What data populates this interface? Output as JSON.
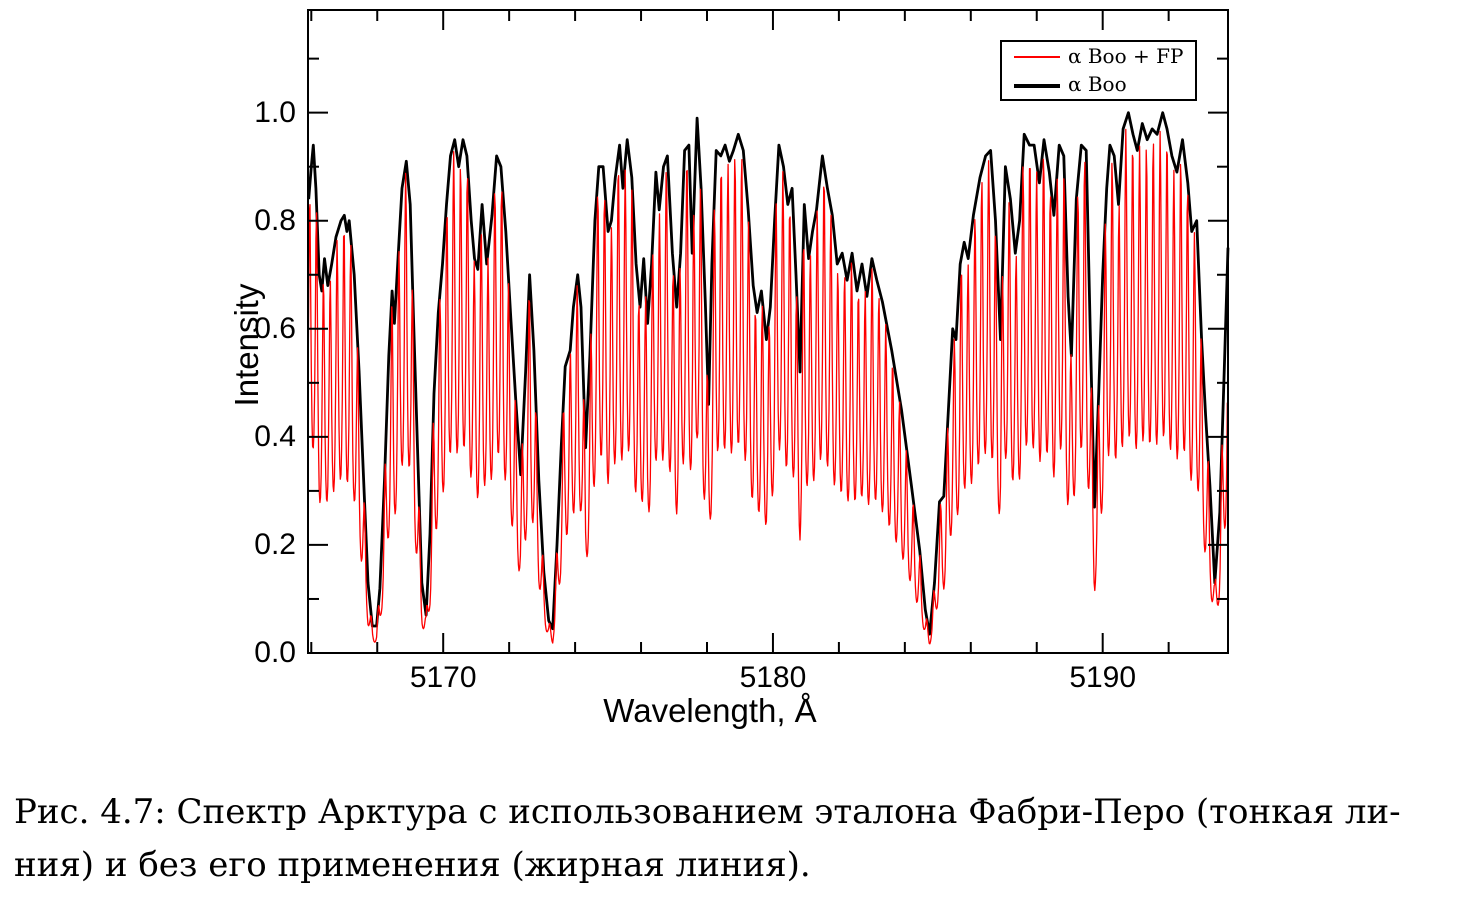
{
  "figure": {
    "caption_line1": "Рис. 4.7: Спектр Арктура с использованием эталона Фабри-Перо (тонкая ли-",
    "caption_line2": "ния) и без его применения (жирная линия)."
  },
  "chart_data": {
    "type": "line",
    "title": "",
    "xlabel": "Wavelength, Å",
    "ylabel": "Intensity",
    "xlim": [
      5165.9,
      5193.8
    ],
    "ylim": [
      0,
      1.19
    ],
    "x_major_ticks": [
      5170,
      5180,
      5190
    ],
    "x_major_tick_labels": [
      "5170",
      "5180",
      "5190"
    ],
    "x_minor_tick_step": 2,
    "y_major_ticks": [
      0,
      0.2,
      0.4,
      0.6,
      0.8,
      1.0
    ],
    "y_major_tick_labels": [
      "0.0",
      "0.2",
      "0.4",
      "0.6",
      "0.8",
      "1.0"
    ],
    "y_minor_tick_step": 0.1,
    "grid": false,
    "legend": {
      "position": "top-right",
      "entries": [
        {
          "label": "α Boo + FP",
          "color": "#fe0000",
          "line_width": 1.3
        },
        {
          "label": "α Boo",
          "color": "#000000",
          "line_width": 2.8
        }
      ]
    },
    "series": [
      {
        "name": "α Boo",
        "color": "#000000",
        "line_width": 2.8,
        "points": [
          [
            5165.92,
            0.84
          ],
          [
            5166.0,
            0.9
          ],
          [
            5166.06,
            0.94
          ],
          [
            5166.14,
            0.86
          ],
          [
            5166.24,
            0.7
          ],
          [
            5166.32,
            0.67
          ],
          [
            5166.4,
            0.73
          ],
          [
            5166.5,
            0.68
          ],
          [
            5166.62,
            0.72
          ],
          [
            5166.75,
            0.77
          ],
          [
            5166.9,
            0.8
          ],
          [
            5167.0,
            0.81
          ],
          [
            5167.08,
            0.78
          ],
          [
            5167.15,
            0.8
          ],
          [
            5167.3,
            0.7
          ],
          [
            5167.45,
            0.52
          ],
          [
            5167.6,
            0.3
          ],
          [
            5167.72,
            0.13
          ],
          [
            5167.85,
            0.05
          ],
          [
            5167.98,
            0.05
          ],
          [
            5168.08,
            0.12
          ],
          [
            5168.22,
            0.32
          ],
          [
            5168.35,
            0.55
          ],
          [
            5168.45,
            0.67
          ],
          [
            5168.52,
            0.61
          ],
          [
            5168.62,
            0.72
          ],
          [
            5168.75,
            0.86
          ],
          [
            5168.88,
            0.91
          ],
          [
            5169.0,
            0.83
          ],
          [
            5169.1,
            0.62
          ],
          [
            5169.22,
            0.38
          ],
          [
            5169.35,
            0.13
          ],
          [
            5169.48,
            0.07
          ],
          [
            5169.6,
            0.22
          ],
          [
            5169.72,
            0.48
          ],
          [
            5169.85,
            0.63
          ],
          [
            5169.98,
            0.72
          ],
          [
            5170.1,
            0.83
          ],
          [
            5170.22,
            0.92
          ],
          [
            5170.35,
            0.95
          ],
          [
            5170.47,
            0.9
          ],
          [
            5170.6,
            0.95
          ],
          [
            5170.72,
            0.92
          ],
          [
            5170.85,
            0.8
          ],
          [
            5170.95,
            0.73
          ],
          [
            5171.05,
            0.71
          ],
          [
            5171.18,
            0.83
          ],
          [
            5171.32,
            0.72
          ],
          [
            5171.48,
            0.81
          ],
          [
            5171.62,
            0.92
          ],
          [
            5171.75,
            0.9
          ],
          [
            5171.9,
            0.78
          ],
          [
            5172.05,
            0.62
          ],
          [
            5172.2,
            0.47
          ],
          [
            5172.35,
            0.33
          ],
          [
            5172.5,
            0.52
          ],
          [
            5172.62,
            0.7
          ],
          [
            5172.75,
            0.56
          ],
          [
            5172.9,
            0.32
          ],
          [
            5173.05,
            0.15
          ],
          [
            5173.2,
            0.06
          ],
          [
            5173.32,
            0.045
          ],
          [
            5173.45,
            0.2
          ],
          [
            5173.58,
            0.38
          ],
          [
            5173.7,
            0.53
          ],
          [
            5173.85,
            0.56
          ],
          [
            5173.95,
            0.64
          ],
          [
            5174.08,
            0.7
          ],
          [
            5174.18,
            0.64
          ],
          [
            5174.32,
            0.38
          ],
          [
            5174.45,
            0.55
          ],
          [
            5174.6,
            0.8
          ],
          [
            5174.72,
            0.9
          ],
          [
            5174.85,
            0.9
          ],
          [
            5175.0,
            0.78
          ],
          [
            5175.1,
            0.8
          ],
          [
            5175.22,
            0.88
          ],
          [
            5175.35,
            0.94
          ],
          [
            5175.45,
            0.86
          ],
          [
            5175.58,
            0.95
          ],
          [
            5175.72,
            0.88
          ],
          [
            5175.85,
            0.72
          ],
          [
            5175.97,
            0.64
          ],
          [
            5176.08,
            0.73
          ],
          [
            5176.2,
            0.61
          ],
          [
            5176.32,
            0.72
          ],
          [
            5176.45,
            0.89
          ],
          [
            5176.55,
            0.82
          ],
          [
            5176.68,
            0.9
          ],
          [
            5176.8,
            0.92
          ],
          [
            5176.95,
            0.74
          ],
          [
            5177.08,
            0.64
          ],
          [
            5177.2,
            0.74
          ],
          [
            5177.32,
            0.93
          ],
          [
            5177.45,
            0.94
          ],
          [
            5177.55,
            0.74
          ],
          [
            5177.7,
            0.99
          ],
          [
            5177.82,
            0.86
          ],
          [
            5177.95,
            0.65
          ],
          [
            5178.05,
            0.46
          ],
          [
            5178.15,
            0.72
          ],
          [
            5178.28,
            0.93
          ],
          [
            5178.42,
            0.92
          ],
          [
            5178.55,
            0.94
          ],
          [
            5178.68,
            0.91
          ],
          [
            5178.8,
            0.93
          ],
          [
            5178.95,
            0.96
          ],
          [
            5179.1,
            0.93
          ],
          [
            5179.25,
            0.82
          ],
          [
            5179.4,
            0.68
          ],
          [
            5179.52,
            0.63
          ],
          [
            5179.65,
            0.67
          ],
          [
            5179.8,
            0.58
          ],
          [
            5179.92,
            0.64
          ],
          [
            5180.05,
            0.8
          ],
          [
            5180.18,
            0.94
          ],
          [
            5180.32,
            0.9
          ],
          [
            5180.45,
            0.83
          ],
          [
            5180.58,
            0.86
          ],
          [
            5180.7,
            0.7
          ],
          [
            5180.82,
            0.52
          ],
          [
            5180.95,
            0.83
          ],
          [
            5181.08,
            0.73
          ],
          [
            5181.2,
            0.78
          ],
          [
            5181.32,
            0.82
          ],
          [
            5181.5,
            0.92
          ],
          [
            5181.65,
            0.86
          ],
          [
            5181.8,
            0.81
          ],
          [
            5181.95,
            0.72
          ],
          [
            5182.1,
            0.74
          ],
          [
            5182.25,
            0.69
          ],
          [
            5182.4,
            0.74
          ],
          [
            5182.55,
            0.67
          ],
          [
            5182.7,
            0.72
          ],
          [
            5182.85,
            0.66
          ],
          [
            5183.0,
            0.73
          ],
          [
            5183.15,
            0.69
          ],
          [
            5183.32,
            0.65
          ],
          [
            5183.6,
            0.56
          ],
          [
            5183.9,
            0.45
          ],
          [
            5184.2,
            0.31
          ],
          [
            5184.45,
            0.19
          ],
          [
            5184.62,
            0.08
          ],
          [
            5184.75,
            0.035
          ],
          [
            5184.9,
            0.13
          ],
          [
            5185.05,
            0.28
          ],
          [
            5185.18,
            0.29
          ],
          [
            5185.32,
            0.45
          ],
          [
            5185.45,
            0.6
          ],
          [
            5185.55,
            0.58
          ],
          [
            5185.68,
            0.72
          ],
          [
            5185.8,
            0.76
          ],
          [
            5185.92,
            0.73
          ],
          [
            5186.08,
            0.81
          ],
          [
            5186.28,
            0.88
          ],
          [
            5186.45,
            0.92
          ],
          [
            5186.6,
            0.93
          ],
          [
            5186.75,
            0.8
          ],
          [
            5186.9,
            0.58
          ],
          [
            5187.05,
            0.9
          ],
          [
            5187.2,
            0.84
          ],
          [
            5187.35,
            0.74
          ],
          [
            5187.48,
            0.8
          ],
          [
            5187.62,
            0.96
          ],
          [
            5187.78,
            0.94
          ],
          [
            5187.92,
            0.94
          ],
          [
            5188.08,
            0.87
          ],
          [
            5188.22,
            0.95
          ],
          [
            5188.38,
            0.89
          ],
          [
            5188.52,
            0.81
          ],
          [
            5188.68,
            0.94
          ],
          [
            5188.82,
            0.92
          ],
          [
            5188.95,
            0.66
          ],
          [
            5189.05,
            0.55
          ],
          [
            5189.2,
            0.84
          ],
          [
            5189.35,
            0.94
          ],
          [
            5189.5,
            0.93
          ],
          [
            5189.62,
            0.6
          ],
          [
            5189.75,
            0.27
          ],
          [
            5189.88,
            0.48
          ],
          [
            5190.0,
            0.7
          ],
          [
            5190.12,
            0.86
          ],
          [
            5190.22,
            0.94
          ],
          [
            5190.35,
            0.92
          ],
          [
            5190.48,
            0.83
          ],
          [
            5190.62,
            0.97
          ],
          [
            5190.78,
            1.0
          ],
          [
            5190.92,
            0.96
          ],
          [
            5191.05,
            0.93
          ],
          [
            5191.2,
            0.98
          ],
          [
            5191.35,
            0.95
          ],
          [
            5191.5,
            0.97
          ],
          [
            5191.65,
            0.96
          ],
          [
            5191.82,
            1.0
          ],
          [
            5191.95,
            0.97
          ],
          [
            5192.1,
            0.92
          ],
          [
            5192.25,
            0.89
          ],
          [
            5192.42,
            0.95
          ],
          [
            5192.58,
            0.87
          ],
          [
            5192.7,
            0.78
          ],
          [
            5192.85,
            0.8
          ],
          [
            5193.0,
            0.58
          ],
          [
            5193.12,
            0.44
          ],
          [
            5193.25,
            0.31
          ],
          [
            5193.4,
            0.13
          ],
          [
            5193.55,
            0.26
          ],
          [
            5193.7,
            0.55
          ],
          [
            5193.8,
            0.75
          ]
        ]
      },
      {
        "name": "α Boo + FP",
        "color": "#fe0000",
        "line_width": 1.3,
        "derived_from": "α Boo",
        "fringe_model": {
          "type": "airy",
          "period_angstrom": 0.208,
          "phase_origin_angstrom": 5165.95,
          "finesse_coefficient": 1.45,
          "peak_transmission": 0.985,
          "sample_step_angstrom": 0.02
        }
      }
    ]
  }
}
